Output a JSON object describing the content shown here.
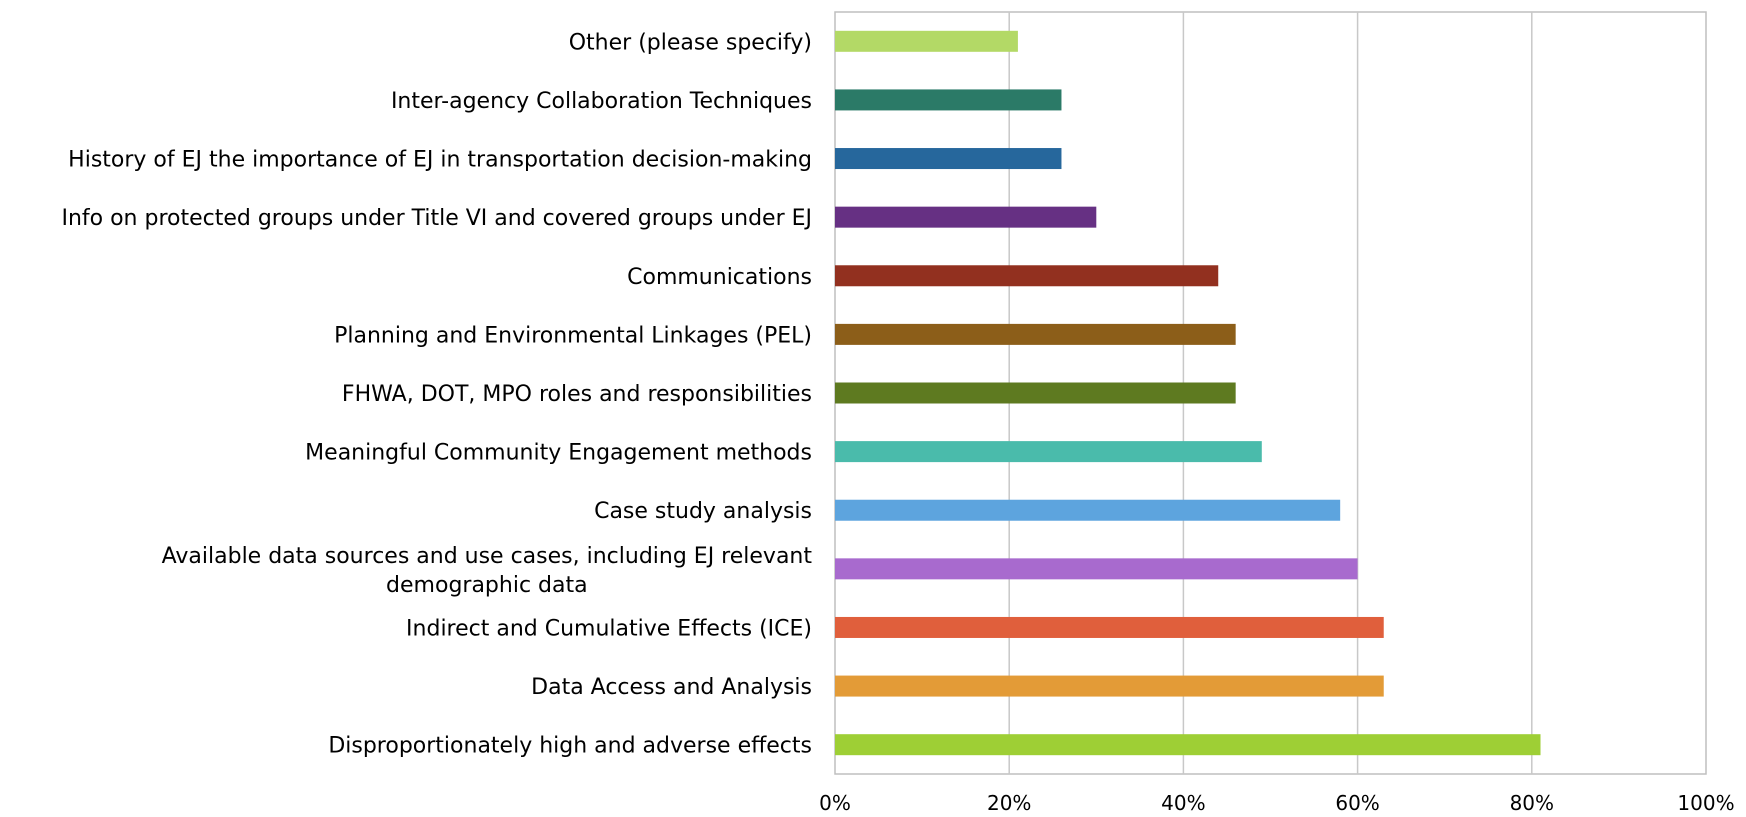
{
  "chart_data": {
    "type": "bar",
    "orientation": "horizontal",
    "title": "",
    "xlabel": "",
    "ylabel": "",
    "xlim": [
      0,
      100
    ],
    "grid": true,
    "legend": "none",
    "tick_labels": [
      "0%",
      "20%",
      "40%",
      "60%",
      "80%",
      "100%"
    ],
    "categories": [
      "Other (please specify)",
      "Inter-agency Collaboration Techniques",
      "History of EJ the importance of EJ in transportation decision-making",
      "Info on protected groups under Title VI and covered groups under EJ",
      "Communications",
      "Planning and Environmental Linkages (PEL)",
      "FHWA, DOT, MPO roles and responsibilities",
      "Meaningful Community Engagement methods",
      "Case study analysis",
      "Available data sources and use cases, including EJ relevant demographic data",
      "Indirect and Cumulative Effects (ICE)",
      "Data Access and Analysis",
      "Disproportionately high and adverse effects"
    ],
    "values": [
      21,
      26,
      26,
      30,
      44,
      46,
      46,
      49,
      58,
      60,
      63,
      63,
      81
    ],
    "colors": [
      "#B3D966",
      "#2B7A67",
      "#26679C",
      "#663083",
      "#92301F",
      "#8C5E19",
      "#5E7A20",
      "#4ABBAB",
      "#5DA4DE",
      "#A86ACE",
      "#E05F3C",
      "#E39B37",
      "#9ECF35"
    ],
    "gridline_color": "#C8C8C8",
    "axis_color": "#BFBFBF"
  }
}
